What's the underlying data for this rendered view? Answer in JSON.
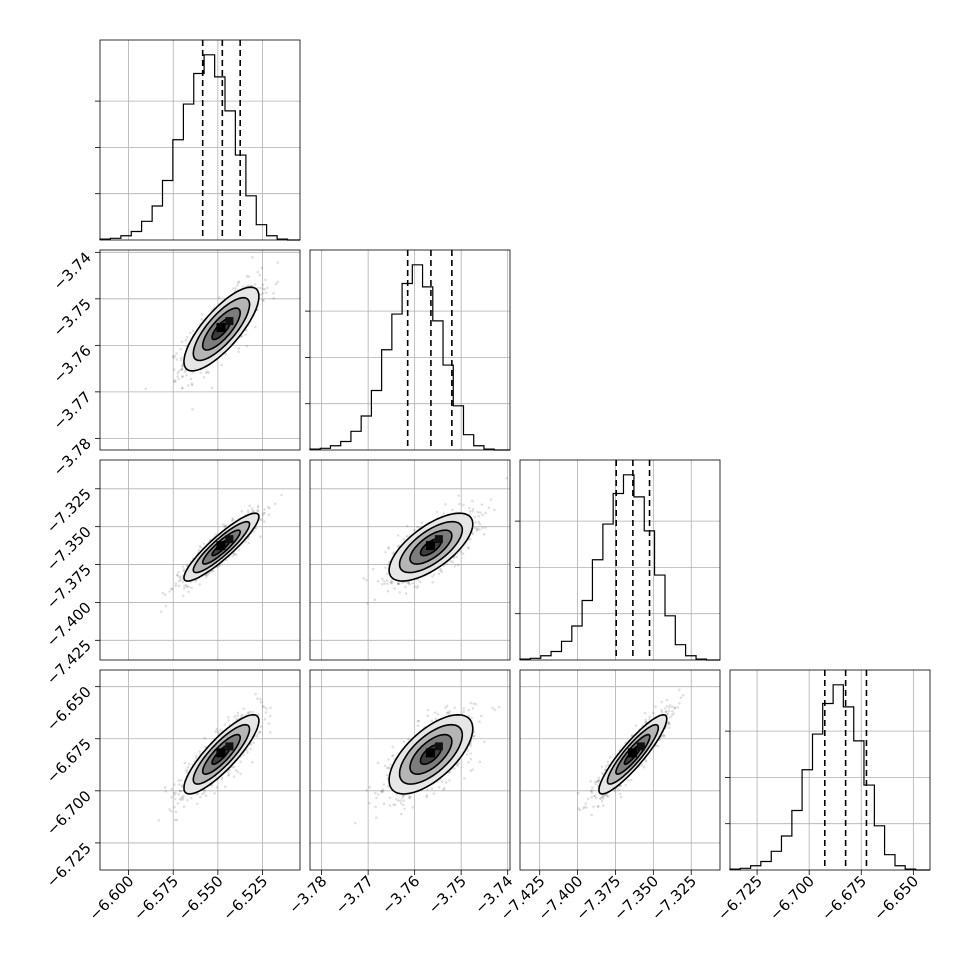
{
  "chart_data": {
    "type": "corner",
    "grid": true,
    "parameters": [
      {
        "index": 0,
        "range": [
          -6.616,
          -6.504
        ],
        "ticks": [
          -6.6,
          -6.575,
          -6.55,
          -6.525
        ],
        "tick_labels": [
          "−6.600",
          "−6.575",
          "−6.550",
          "−6.525"
        ],
        "quantiles": [
          -6.5585,
          -6.5475,
          -6.5375
        ],
        "hist_bins": [
          -6.616,
          -6.6102,
          -6.6043,
          -6.5985,
          -6.5927,
          -6.5868,
          -6.581,
          -6.5752,
          -6.5693,
          -6.5635,
          -6.5577,
          -6.5518,
          -6.546,
          -6.5402,
          -6.5343,
          -6.5285,
          -6.5227,
          -6.5168,
          -6.511,
          -6.504
        ],
        "hist_counts": [
          1,
          2,
          5,
          10,
          22,
          40,
          70,
          118,
          160,
          196,
          218,
          192,
          152,
          100,
          52,
          18,
          5,
          1,
          0
        ]
      },
      {
        "index": 1,
        "range": [
          -3.7825,
          -3.7395
        ],
        "ticks": [
          -3.78,
          -3.77,
          -3.76,
          -3.75,
          -3.74
        ],
        "tick_labels": [
          "−3.78",
          "−3.77",
          "−3.76",
          "−3.75",
          "−3.74"
        ],
        "quantiles": [
          -3.7615,
          -3.7565,
          -3.752
        ],
        "hist_bins": [
          -3.7825,
          -3.7803,
          -3.7781,
          -3.7759,
          -3.7737,
          -3.7715,
          -3.7693,
          -3.7671,
          -3.7649,
          -3.7627,
          -3.7605,
          -3.7583,
          -3.7561,
          -3.7539,
          -3.7517,
          -3.7495,
          -3.7473,
          -3.7451,
          -3.7429,
          -3.7395
        ],
        "hist_counts": [
          1,
          2,
          5,
          10,
          22,
          40,
          70,
          118,
          160,
          196,
          218,
          192,
          152,
          100,
          52,
          18,
          5,
          1,
          0
        ]
      },
      {
        "index": 2,
        "range": [
          -7.438,
          -7.306
        ],
        "ticks": [
          -7.425,
          -7.4,
          -7.375,
          -7.35,
          -7.325
        ],
        "tick_labels": [
          "−7.425",
          "−7.400",
          "−7.375",
          "−7.350",
          "−7.325"
        ],
        "quantiles": [
          -7.3745,
          -7.3635,
          -7.3525
        ],
        "hist_bins": [
          -7.438,
          -7.4312,
          -7.4243,
          -7.4175,
          -7.4106,
          -7.4038,
          -7.397,
          -7.3902,
          -7.3833,
          -7.3765,
          -7.3697,
          -7.3628,
          -7.356,
          -7.3492,
          -7.3423,
          -7.3355,
          -7.3287,
          -7.3218,
          -7.315,
          -7.306
        ],
        "hist_counts": [
          1,
          2,
          5,
          10,
          22,
          40,
          70,
          118,
          160,
          196,
          218,
          192,
          152,
          100,
          52,
          18,
          5,
          1,
          0
        ]
      },
      {
        "index": 3,
        "range": [
          -6.738,
          -6.642
        ],
        "ticks": [
          -6.725,
          -6.7,
          -6.675,
          -6.65
        ],
        "tick_labels": [
          "−6.725",
          "−6.700",
          "−6.675",
          "−6.650"
        ],
        "quantiles": [
          -6.6925,
          -6.6825,
          -6.6725
        ],
        "hist_bins": [
          -6.738,
          -6.7331,
          -6.7281,
          -6.7232,
          -6.7182,
          -6.7133,
          -6.7083,
          -6.7034,
          -6.6984,
          -6.6935,
          -6.6885,
          -6.6836,
          -6.6786,
          -6.6737,
          -6.6687,
          -6.6638,
          -6.6588,
          -6.6539,
          -6.6489,
          -6.642
        ],
        "hist_counts": [
          1,
          2,
          5,
          10,
          22,
          40,
          70,
          118,
          160,
          196,
          218,
          192,
          152,
          100,
          52,
          18,
          5,
          1,
          0
        ]
      }
    ],
    "pairs": [
      {
        "row": 1,
        "col": 0,
        "center": [
          -6.548,
          -3.7565
        ],
        "sigma_x": 0.0105,
        "sigma_y": 0.0045,
        "rho": 0.78
      },
      {
        "row": 2,
        "col": 0,
        "center": [
          -6.548,
          -7.3635
        ],
        "sigma_x": 0.0105,
        "sigma_y": 0.0112,
        "rho": 0.9
      },
      {
        "row": 2,
        "col": 1,
        "center": [
          -3.7565,
          -7.3635
        ],
        "sigma_x": 0.0045,
        "sigma_y": 0.0112,
        "rho": 0.68
      },
      {
        "row": 3,
        "col": 0,
        "center": [
          -6.548,
          -6.6825
        ],
        "sigma_x": 0.0105,
        "sigma_y": 0.0095,
        "rho": 0.85
      },
      {
        "row": 3,
        "col": 1,
        "center": [
          -3.7565,
          -6.6825
        ],
        "sigma_x": 0.0045,
        "sigma_y": 0.0095,
        "rho": 0.65
      },
      {
        "row": 3,
        "col": 2,
        "center": [
          -7.3635,
          -6.6825
        ],
        "sigma_x": 0.0112,
        "sigma_y": 0.0095,
        "rho": 0.9
      }
    ],
    "contour_levels_sigma": [
      0.5,
      1.0,
      1.5,
      2.0
    ]
  }
}
